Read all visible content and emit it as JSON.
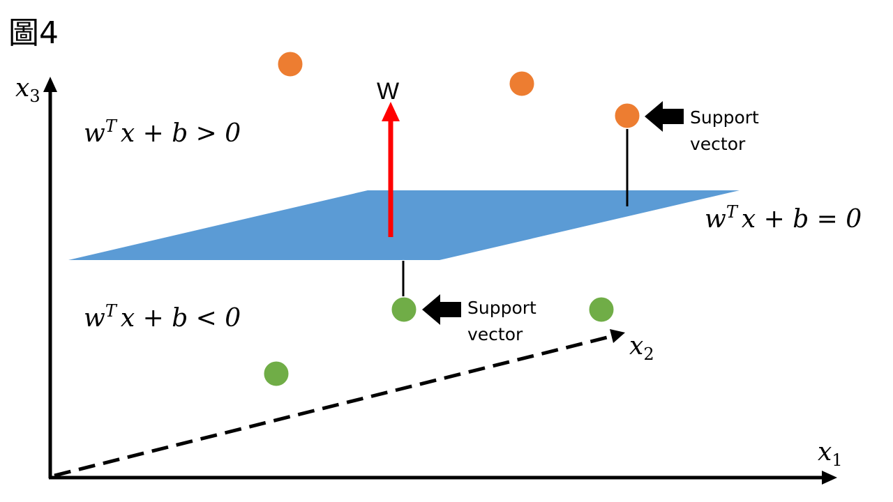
{
  "title": "圖4",
  "axes": {
    "x1": {
      "var": "x",
      "sub": "1"
    },
    "x2": {
      "var": "x",
      "sub": "2"
    },
    "x3": {
      "var": "x",
      "sub": "3"
    }
  },
  "normal_vector_label": "W",
  "equations": {
    "positive": {
      "w": "w",
      "sup": "T",
      "rest": "x + b > 0"
    },
    "hyperplane": {
      "w": "w",
      "sup": "T",
      "rest": "x + b = 0"
    },
    "negative": {
      "w": "w",
      "sup": "T",
      "rest": "x + b < 0"
    }
  },
  "support_vector_top": {
    "line1": "Support",
    "line2": "vector"
  },
  "support_vector_bottom": {
    "line1": "Support",
    "line2": "vector"
  },
  "colors": {
    "positive_point": "#ED7D31",
    "negative_point": "#70AD47",
    "plane": "#5B9BD5",
    "normal_arrow": "#FF0000",
    "axis": "#000000"
  }
}
